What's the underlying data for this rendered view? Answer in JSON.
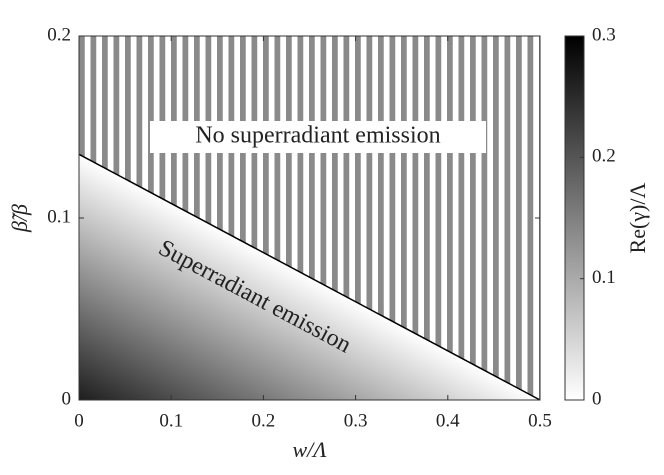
{
  "chart_data": {
    "type": "line",
    "xlabel": "w/Λ",
    "ylabel": "β̃/β",
    "xlim": [
      0,
      0.5
    ],
    "xticks": [
      0,
      0.1,
      0.2,
      0.3,
      0.4,
      0.5
    ],
    "ylim": [
      0,
      0.2
    ],
    "yticks": [
      0,
      0.1,
      0.2
    ],
    "series": [
      {
        "x": [
          0,
          0.5
        ],
        "values": [
          0.135,
          0
        ],
        "color": "#000000"
      }
    ],
    "annotations": [
      "No superradiant emission",
      "Superradiant emission"
    ],
    "colorbar": {
      "label": "Re(γ)/Λ",
      "lim": [
        0,
        0.3
      ],
      "ticks": [
        0,
        0.1,
        0.2,
        0.3
      ],
      "colormap": [
        "#ffffff",
        "#000000"
      ]
    }
  }
}
